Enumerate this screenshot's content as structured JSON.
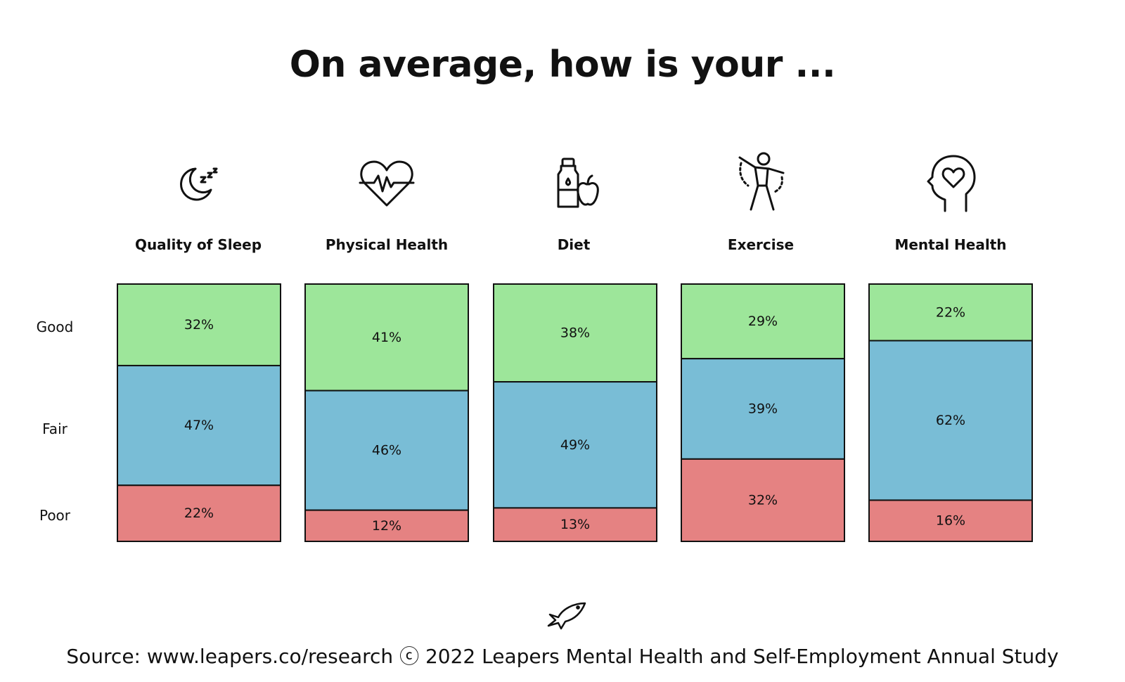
{
  "title": "On average, how is your ...",
  "source": "Source: www.leapers.co/research ⓒ 2022 Leapers Mental Health and Self-Employment Annual Study",
  "categories": [
    {
      "label": "Quality of Sleep",
      "icon": "moon-sleep-icon"
    },
    {
      "label": "Physical Health",
      "icon": "heart-pulse-icon"
    },
    {
      "label": "Diet",
      "icon": "bottle-apple-icon"
    },
    {
      "label": "Exercise",
      "icon": "exercise-person-icon"
    },
    {
      "label": "Mental Health",
      "icon": "head-heart-icon"
    }
  ],
  "row_labels": [
    "Good",
    "Fair",
    "Poor"
  ],
  "colors": {
    "good": "#9de69a",
    "fair": "#79bdd6",
    "poor": "#e58282",
    "border": "#111111"
  },
  "chart_data": {
    "type": "bar",
    "stacked": true,
    "categories": [
      "Quality of Sleep",
      "Physical Health",
      "Diet",
      "Exercise",
      "Mental Health"
    ],
    "series": [
      {
        "name": "Good",
        "values": [
          32,
          41,
          38,
          29,
          22
        ],
        "labels": [
          "32%",
          "41%",
          "38%",
          "29%",
          "22%"
        ]
      },
      {
        "name": "Fair",
        "values": [
          47,
          46,
          49,
          39,
          62
        ],
        "labels": [
          "47%",
          "46%",
          "49%",
          "39%",
          "62%"
        ]
      },
      {
        "name": "Poor",
        "values": [
          22,
          12,
          13,
          32,
          16
        ],
        "labels": [
          "22%",
          "12%",
          "13%",
          "32%",
          "16%"
        ]
      }
    ],
    "ylim": [
      0,
      100
    ],
    "grid": false,
    "legend": "left"
  }
}
